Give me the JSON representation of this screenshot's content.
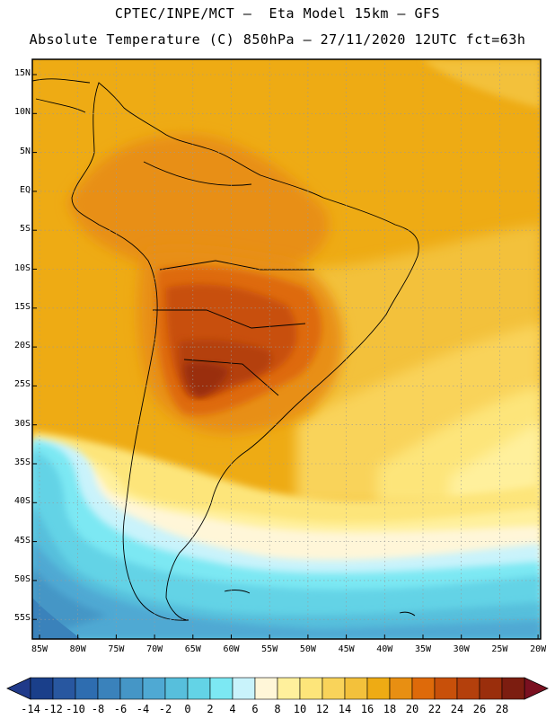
{
  "header": {
    "line1": "CPTEC/INPE/MCT –  Eta Model 15km – GFS",
    "line2": "Absolute Temperature (C) 850hPa – 27/11/2020 12UTC fct=63h"
  },
  "map": {
    "lat_labels": [
      "15N",
      "10N",
      "5N",
      "EQ",
      "5S",
      "10S",
      "15S",
      "20S",
      "25S",
      "30S",
      "35S",
      "40S",
      "45S",
      "50S",
      "55S"
    ],
    "lon_labels": [
      "85W",
      "80W",
      "75W",
      "70W",
      "65W",
      "60W",
      "55W",
      "50W",
      "45W",
      "40W",
      "35W",
      "30W",
      "25W",
      "20W"
    ]
  },
  "colorbar": {
    "labels": [
      "-14",
      "-12",
      "-10",
      "-8",
      "-6",
      "-4",
      "-2",
      "0",
      "2",
      "4",
      "6",
      "8",
      "10",
      "12",
      "14",
      "16",
      "18",
      "20",
      "22",
      "24",
      "26",
      "28"
    ],
    "colors": [
      "#1a3f8a",
      "#2857a0",
      "#2e6db0",
      "#3a82bb",
      "#4596c6",
      "#4fa9d3",
      "#57bfdc",
      "#63d3e6",
      "#7ce8f3",
      "#c9f3fb",
      "#fff6d8",
      "#fff09c",
      "#fde57a",
      "#f9d35a",
      "#f3c13b",
      "#eeab14",
      "#e88f12",
      "#de6a0a",
      "#c8500a",
      "#b4400c",
      "#9a2e0c",
      "#7c1d10"
    ],
    "low_cap_color": "#203a8a",
    "high_cap_color": "#7a1020"
  }
}
